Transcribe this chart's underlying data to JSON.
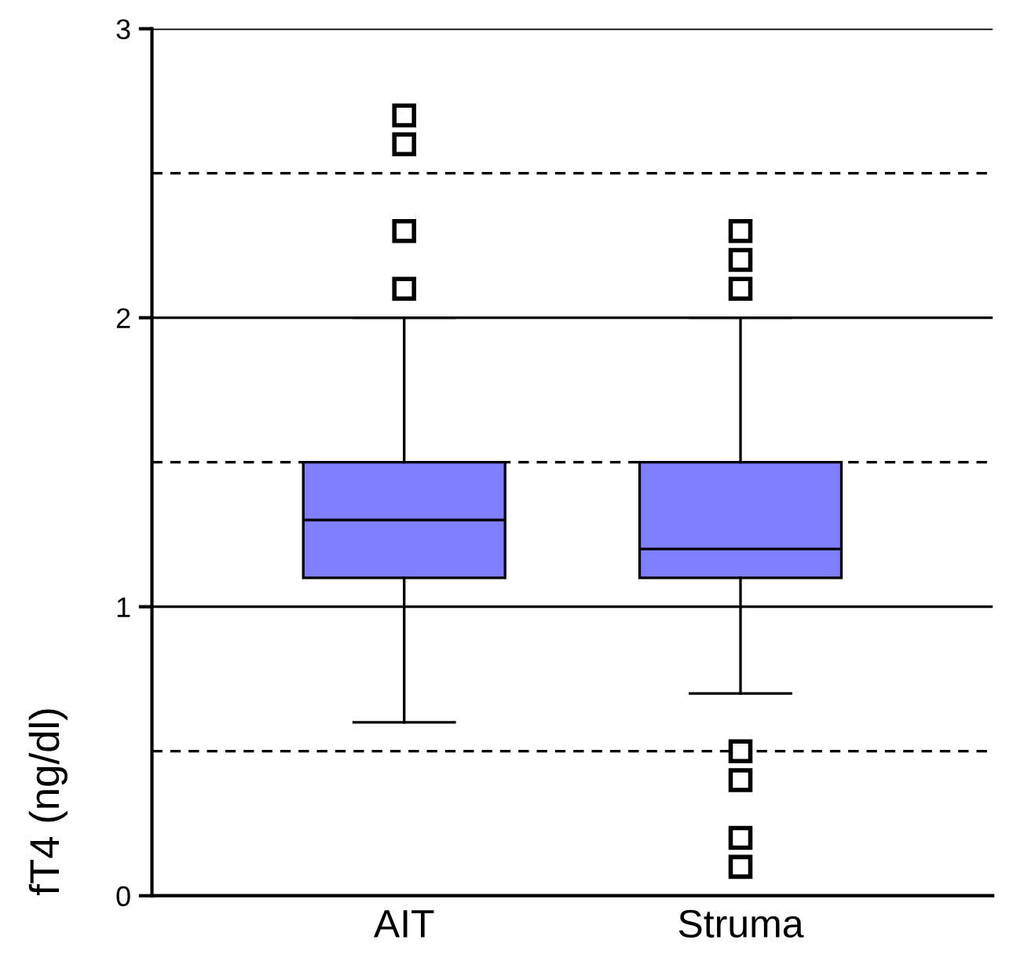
{
  "chart_data": {
    "type": "box",
    "ylabel": "fT4 (ng/dl)",
    "categories": [
      "AIT",
      "Struma"
    ],
    "color": "#7f7fff",
    "marker": "square",
    "grid": "y",
    "ylim": [
      0,
      3
    ],
    "yticks": [
      0,
      1,
      2,
      3
    ],
    "boxes": [
      {
        "low": 0.6,
        "q1": 1.1,
        "median": 1.3,
        "q3": 1.5,
        "high": 2.0,
        "outliers": [
          2.1,
          2.3,
          2.6,
          2.7
        ]
      },
      {
        "low": 0.7,
        "q1": 1.1,
        "median": 1.2,
        "q3": 1.5,
        "high": 2.0,
        "outliers": [
          2.1,
          2.2,
          2.3,
          0.5,
          0.4,
          0.2,
          0.1
        ]
      }
    ],
    "ref_lines": [
      {
        "axis": "y",
        "value": 0.5,
        "line_style": "dashed",
        "color": "#000000"
      },
      {
        "axis": "y",
        "value": 1.5,
        "line_style": "dashed",
        "color": "#000000"
      },
      {
        "axis": "y",
        "value": 2.5,
        "line_style": "dashed",
        "color": "#000000"
      }
    ]
  }
}
